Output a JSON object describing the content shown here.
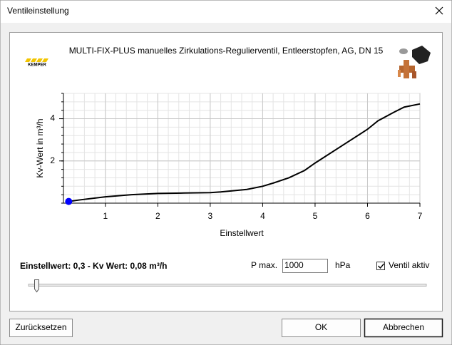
{
  "window": {
    "title": "Ventileinstellung"
  },
  "header": {
    "brand": "KEMPER",
    "product": "MULTI-FIX-PLUS manuelles Zirkulations-Regulierventil, Entleerstopfen, AG, DN 15"
  },
  "chart_data": {
    "type": "line",
    "x_label": "Einstellwert",
    "y_label": "Kv-Wert in m³/h",
    "x": [
      0.3,
      0.5,
      1,
      1.5,
      2,
      2.5,
      3,
      3.2,
      3.7,
      4,
      4.2,
      4.5,
      4.8,
      5,
      5.5,
      6,
      6.2,
      6.5,
      6.7,
      7
    ],
    "values": [
      0.08,
      0.15,
      0.3,
      0.4,
      0.46,
      0.48,
      0.5,
      0.53,
      0.65,
      0.8,
      0.95,
      1.2,
      1.55,
      1.9,
      2.7,
      3.5,
      3.9,
      4.3,
      4.55,
      4.7
    ],
    "color": "#000000",
    "marker": {
      "x": 0.3,
      "y": 0.08,
      "color": "#0000ff"
    },
    "xlim": [
      0.2,
      7
    ],
    "xticks": [
      1,
      2,
      3,
      4,
      5,
      6,
      7
    ],
    "ylim": [
      0,
      5.2
    ],
    "yticks": [
      2,
      4
    ],
    "grid": true
  },
  "status": "Einstellwert: 0,3 - Kv Wert: 0,08 m³/h",
  "pressure": {
    "label": "P max.",
    "value": "1000",
    "unit": "hPa"
  },
  "checkbox": {
    "label": "Ventil aktiv",
    "checked": true
  },
  "buttons": {
    "reset": "Zurücksetzen",
    "ok": "OK",
    "cancel": "Abbrechen"
  }
}
